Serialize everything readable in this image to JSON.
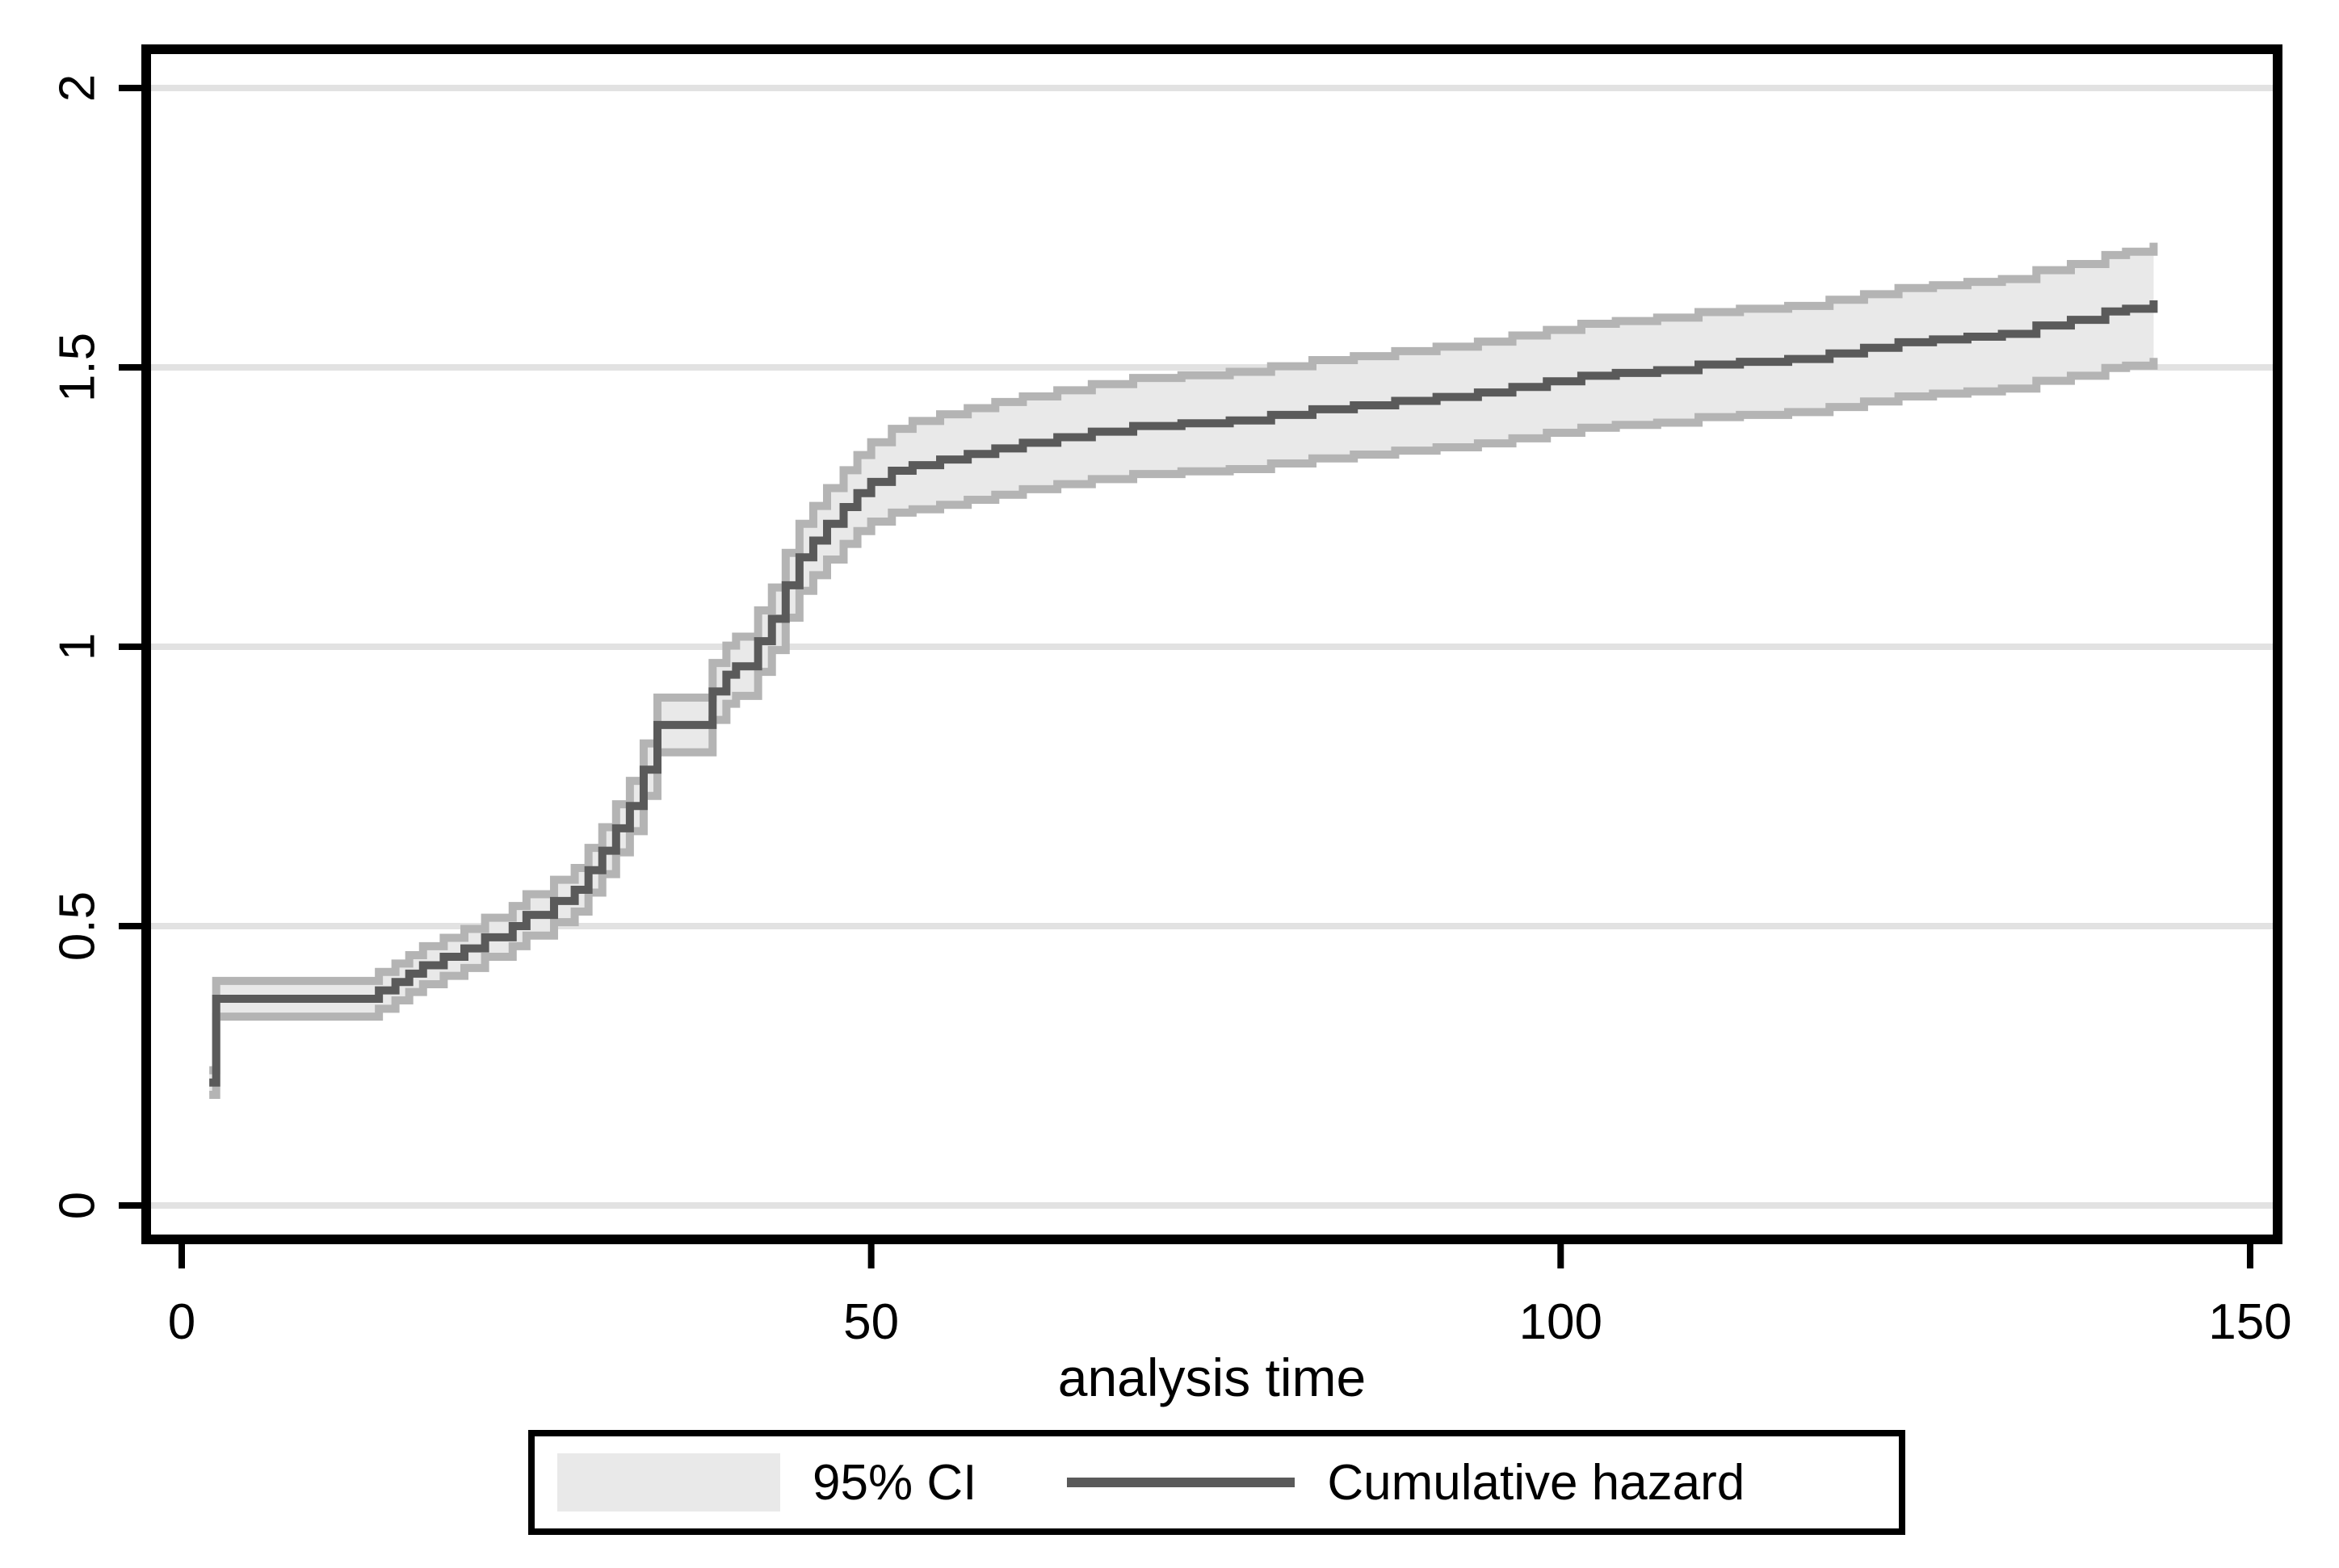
{
  "chart_data": {
    "type": "area",
    "title": "",
    "xlabel": "analysis time",
    "ylabel": "",
    "xlim": [
      0,
      150
    ],
    "ylim": [
      0,
      2
    ],
    "x_ticks": [
      0,
      50,
      100,
      150
    ],
    "x_tick_labels": [
      "0",
      "50",
      "100",
      "150"
    ],
    "y_ticks": [
      0,
      0.5,
      1,
      1.5,
      2
    ],
    "y_tick_labels": [
      "0",
      "0.5",
      "1",
      "1.5",
      "2"
    ],
    "grid": "horizontal",
    "legend_position": "bottom-center",
    "legend": [
      {
        "label": "95% CI",
        "type": "area"
      },
      {
        "label": "Cumulative hazard",
        "type": "line"
      }
    ],
    "series": [
      {
        "name": "Cumulative hazard",
        "kind": "step",
        "note": "columns: t, hazard, ci_low, ci_high",
        "steps": [
          [
            2,
            0.22,
            0.198,
            0.242
          ],
          [
            2.5,
            0.37,
            0.338,
            0.402
          ],
          [
            14.3,
            0.385,
            0.352,
            0.418
          ],
          [
            15.5,
            0.4,
            0.367,
            0.433
          ],
          [
            16.5,
            0.415,
            0.382,
            0.448
          ],
          [
            17.5,
            0.43,
            0.396,
            0.464
          ],
          [
            19,
            0.445,
            0.411,
            0.479
          ],
          [
            20.5,
            0.46,
            0.425,
            0.495
          ],
          [
            22,
            0.48,
            0.445,
            0.515
          ],
          [
            24,
            0.5,
            0.464,
            0.536
          ],
          [
            25,
            0.52,
            0.483,
            0.557
          ],
          [
            27,
            0.545,
            0.507,
            0.583
          ],
          [
            28.5,
            0.565,
            0.526,
            0.604
          ],
          [
            29.5,
            0.6,
            0.56,
            0.64
          ],
          [
            30.5,
            0.635,
            0.593,
            0.677
          ],
          [
            31.5,
            0.675,
            0.632,
            0.718
          ],
          [
            32.5,
            0.715,
            0.67,
            0.76
          ],
          [
            33.5,
            0.78,
            0.733,
            0.827
          ],
          [
            34.5,
            0.86,
            0.811,
            0.909
          ],
          [
            38.5,
            0.92,
            0.869,
            0.971
          ],
          [
            39.5,
            0.95,
            0.898,
            1.002
          ],
          [
            40.2,
            0.965,
            0.912,
            1.018
          ],
          [
            41.8,
            1.01,
            0.955,
            1.065
          ],
          [
            42.8,
            1.05,
            0.994,
            1.106
          ],
          [
            43.8,
            1.11,
            1.052,
            1.168
          ],
          [
            44.8,
            1.16,
            1.1,
            1.22
          ],
          [
            45.8,
            1.19,
            1.128,
            1.252
          ],
          [
            46.8,
            1.22,
            1.156,
            1.284
          ],
          [
            48,
            1.25,
            1.184,
            1.316
          ],
          [
            49,
            1.275,
            1.207,
            1.343
          ],
          [
            50,
            1.295,
            1.224,
            1.366
          ],
          [
            51.5,
            1.315,
            1.24,
            1.39
          ],
          [
            53,
            1.325,
            1.246,
            1.404
          ],
          [
            55,
            1.335,
            1.254,
            1.416
          ],
          [
            57,
            1.345,
            1.263,
            1.427
          ],
          [
            59,
            1.355,
            1.272,
            1.438
          ],
          [
            61,
            1.365,
            1.282,
            1.448
          ],
          [
            63.5,
            1.375,
            1.291,
            1.459
          ],
          [
            66,
            1.385,
            1.3,
            1.47
          ],
          [
            69,
            1.395,
            1.309,
            1.481
          ],
          [
            72.5,
            1.4,
            1.314,
            1.486
          ],
          [
            76,
            1.405,
            1.318,
            1.492
          ],
          [
            79,
            1.415,
            1.328,
            1.502
          ],
          [
            82,
            1.425,
            1.337,
            1.513
          ],
          [
            85,
            1.432,
            1.344,
            1.52
          ],
          [
            88,
            1.44,
            1.351,
            1.529
          ],
          [
            91,
            1.447,
            1.357,
            1.537
          ],
          [
            94,
            1.455,
            1.364,
            1.546
          ],
          [
            96.5,
            1.465,
            1.373,
            1.557
          ],
          [
            99,
            1.475,
            1.383,
            1.567
          ],
          [
            101.5,
            1.485,
            1.392,
            1.578
          ],
          [
            104,
            1.49,
            1.397,
            1.583
          ],
          [
            107,
            1.495,
            1.401,
            1.589
          ],
          [
            110,
            1.505,
            1.411,
            1.599
          ],
          [
            113,
            1.51,
            1.415,
            1.605
          ],
          [
            116.5,
            1.515,
            1.42,
            1.61
          ],
          [
            119.5,
            1.525,
            1.429,
            1.621
          ],
          [
            122,
            1.535,
            1.439,
            1.631
          ],
          [
            124.5,
            1.545,
            1.448,
            1.642
          ],
          [
            127,
            1.55,
            1.453,
            1.647
          ],
          [
            129.5,
            1.555,
            1.457,
            1.653
          ],
          [
            132,
            1.56,
            1.462,
            1.658
          ],
          [
            134.5,
            1.575,
            1.476,
            1.674
          ],
          [
            137,
            1.585,
            1.485,
            1.685
          ],
          [
            139.5,
            1.6,
            1.499,
            1.701
          ],
          [
            141,
            1.605,
            1.503,
            1.707
          ],
          [
            143,
            1.62,
            1.517,
            1.723
          ]
        ]
      }
    ],
    "colors": {
      "hazard_line": "#5a5a5a",
      "ci_fill": "#e9e9e9",
      "ci_edge": "#b4b4b4",
      "gridline": "#e2e2e2",
      "axis": "#000000",
      "background": "#ffffff"
    }
  }
}
